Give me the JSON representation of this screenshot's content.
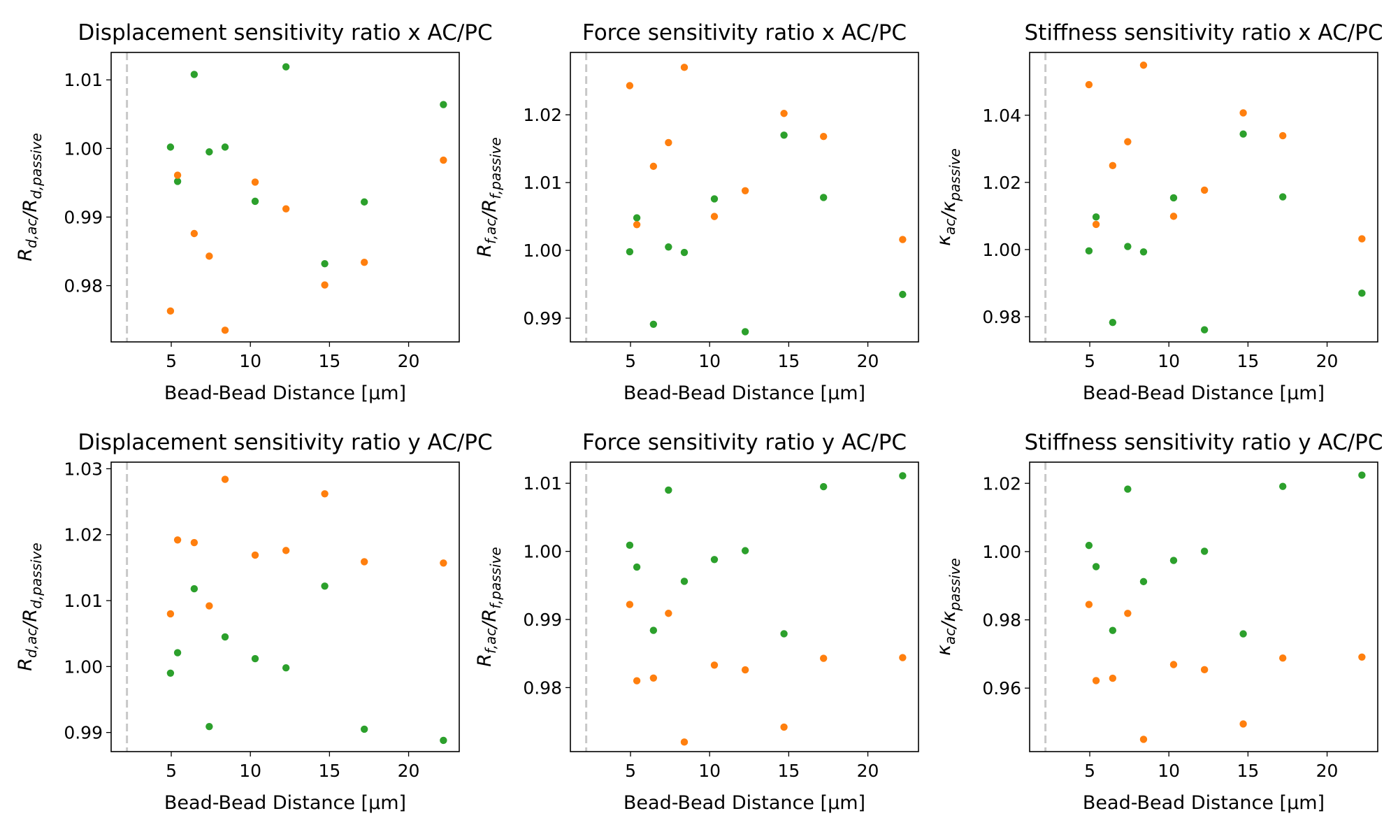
{
  "colors": {
    "active": "#2ca02c",
    "passive": "#ff7f0e",
    "reference_line": "#c8c8c8"
  },
  "reference_x": 2.2,
  "chart_data": [
    {
      "type": "scatter",
      "title": "Displacement sensitivity ratio x AC/PC",
      "xlabel": "Bead-Bead Distance [μm]",
      "ylabel": "R_d,ac/R_d,passive",
      "xlim": [
        1.2,
        23.2
      ],
      "ylim": [
        0.9718,
        1.014
      ],
      "xticks": [
        5,
        10,
        15,
        20
      ],
      "yticks": [
        0.98,
        0.99,
        1.0,
        1.01
      ],
      "ytick_labels": [
        "0.98",
        "0.99",
        "1.00",
        "1.01"
      ],
      "series": [
        {
          "color": "#2ca02c",
          "points": [
            [
              4.95,
              1.0002
            ],
            [
              5.4,
              0.9952
            ],
            [
              6.45,
              1.0108
            ],
            [
              7.4,
              0.9995
            ],
            [
              8.4,
              1.0002
            ],
            [
              10.3,
              0.9923
            ],
            [
              12.25,
              1.0119
            ],
            [
              14.7,
              0.9832
            ],
            [
              17.2,
              0.9922
            ],
            [
              22.2,
              1.0064
            ]
          ]
        },
        {
          "color": "#ff7f0e",
          "points": [
            [
              4.95,
              0.9763
            ],
            [
              5.4,
              0.9961
            ],
            [
              6.45,
              0.9876
            ],
            [
              7.4,
              0.9843
            ],
            [
              8.4,
              0.9735
            ],
            [
              10.3,
              0.9951
            ],
            [
              12.25,
              0.9912
            ],
            [
              14.7,
              0.9801
            ],
            [
              17.2,
              0.9834
            ],
            [
              22.2,
              0.9983
            ]
          ]
        }
      ]
    },
    {
      "type": "scatter",
      "title": "Force sensitivity ratio x AC/PC",
      "xlabel": "Bead-Bead Distance [μm]",
      "ylabel": "R_f,ac/R_f,passive",
      "xlim": [
        1.2,
        23.2
      ],
      "ylim": [
        0.9865,
        1.0292
      ],
      "xticks": [
        5,
        10,
        15,
        20
      ],
      "yticks": [
        0.99,
        1.0,
        1.01,
        1.02
      ],
      "ytick_labels": [
        "0.99",
        "1.00",
        "1.01",
        "1.02"
      ],
      "series": [
        {
          "color": "#2ca02c",
          "points": [
            [
              4.95,
              0.9998
            ],
            [
              5.4,
              1.0048
            ],
            [
              6.45,
              0.9891
            ],
            [
              7.4,
              1.0005
            ],
            [
              8.4,
              0.9997
            ],
            [
              10.3,
              1.0076
            ],
            [
              12.25,
              0.988
            ],
            [
              14.7,
              1.017
            ],
            [
              17.2,
              1.0078
            ],
            [
              22.2,
              0.9935
            ]
          ]
        },
        {
          "color": "#ff7f0e",
          "points": [
            [
              4.95,
              1.0243
            ],
            [
              5.4,
              1.0038
            ],
            [
              6.45,
              1.0124
            ],
            [
              7.4,
              1.0159
            ],
            [
              8.4,
              1.027
            ],
            [
              10.3,
              1.005
            ],
            [
              12.25,
              1.0088
            ],
            [
              14.7,
              1.0202
            ],
            [
              17.2,
              1.0168
            ],
            [
              22.2,
              1.0016
            ]
          ]
        }
      ]
    },
    {
      "type": "scatter",
      "title": "Stiffness sensitivity ratio x AC/PC",
      "xlabel": "Bead-Bead Distance [μm]",
      "ylabel": "κ_ac/κ_passive",
      "xlim": [
        1.2,
        23.2
      ],
      "ylim": [
        0.9725,
        1.0587
      ],
      "xticks": [
        5,
        10,
        15,
        20
      ],
      "yticks": [
        0.98,
        1.0,
        1.02,
        1.04
      ],
      "ytick_labels": [
        "0.98",
        "1.00",
        "1.02",
        "1.04"
      ],
      "series": [
        {
          "color": "#2ca02c",
          "points": [
            [
              4.95,
              0.9996
            ],
            [
              5.4,
              1.0097
            ],
            [
              6.45,
              0.9783
            ],
            [
              7.4,
              1.0009
            ],
            [
              8.4,
              0.9993
            ],
            [
              10.3,
              1.0154
            ],
            [
              12.25,
              0.9761
            ],
            [
              14.7,
              1.0344
            ],
            [
              17.2,
              1.0157
            ],
            [
              22.2,
              0.987
            ]
          ]
        },
        {
          "color": "#ff7f0e",
          "points": [
            [
              4.95,
              1.0491
            ],
            [
              5.4,
              1.0075
            ],
            [
              6.45,
              1.025
            ],
            [
              7.4,
              1.0321
            ],
            [
              8.4,
              1.0549
            ],
            [
              10.3,
              1.0099
            ],
            [
              12.25,
              1.0177
            ],
            [
              14.7,
              1.0407
            ],
            [
              17.2,
              1.0339
            ],
            [
              22.2,
              1.0032
            ]
          ]
        }
      ]
    },
    {
      "type": "scatter",
      "title": "Displacement sensitivity ratio y AC/PC",
      "xlabel": "Bead-Bead Distance [μm]",
      "ylabel": "R_d,ac/R_d,passive",
      "xlim": [
        1.2,
        23.2
      ],
      "ylim": [
        0.9871,
        1.031
      ],
      "xticks": [
        5,
        10,
        15,
        20
      ],
      "yticks": [
        0.99,
        1.0,
        1.01,
        1.02,
        1.03
      ],
      "ytick_labels": [
        "0.99",
        "1.00",
        "1.01",
        "1.02",
        "1.03"
      ],
      "series": [
        {
          "color": "#2ca02c",
          "points": [
            [
              4.95,
              0.999
            ],
            [
              5.4,
              1.0021
            ],
            [
              6.45,
              1.0118
            ],
            [
              7.4,
              0.9909
            ],
            [
              8.4,
              1.0045
            ],
            [
              10.3,
              1.0012
            ],
            [
              12.25,
              0.9998
            ],
            [
              14.7,
              1.0122
            ],
            [
              17.2,
              0.9905
            ],
            [
              22.2,
              0.9888
            ]
          ]
        },
        {
          "color": "#ff7f0e",
          "points": [
            [
              4.95,
              1.008
            ],
            [
              5.4,
              1.0192
            ],
            [
              6.45,
              1.0188
            ],
            [
              7.4,
              1.0092
            ],
            [
              8.4,
              1.0284
            ],
            [
              10.3,
              1.0169
            ],
            [
              12.25,
              1.0176
            ],
            [
              14.7,
              1.0262
            ],
            [
              17.2,
              1.0159
            ],
            [
              22.2,
              1.0157
            ]
          ]
        }
      ]
    },
    {
      "type": "scatter",
      "title": "Force sensitivity ratio y AC/PC",
      "xlabel": "Bead-Bead Distance [μm]",
      "ylabel": "R_f,ac/R_f,passive",
      "xlim": [
        1.2,
        23.2
      ],
      "ylim": [
        0.9706,
        1.0131
      ],
      "xticks": [
        5,
        10,
        15,
        20
      ],
      "yticks": [
        0.98,
        0.99,
        1.0,
        1.01
      ],
      "ytick_labels": [
        "0.98",
        "0.99",
        "1.00",
        "1.01"
      ],
      "series": [
        {
          "color": "#2ca02c",
          "points": [
            [
              4.95,
              1.0009
            ],
            [
              5.4,
              0.9977
            ],
            [
              6.45,
              0.9884
            ],
            [
              7.4,
              1.009
            ],
            [
              8.4,
              0.9956
            ],
            [
              10.3,
              0.9988
            ],
            [
              12.25,
              1.0001
            ],
            [
              14.7,
              0.9879
            ],
            [
              17.2,
              1.0095
            ],
            [
              22.2,
              1.0111
            ]
          ]
        },
        {
          "color": "#ff7f0e",
          "points": [
            [
              4.95,
              0.9922
            ],
            [
              5.4,
              0.981
            ],
            [
              6.45,
              0.9814
            ],
            [
              7.4,
              0.9909
            ],
            [
              8.4,
              0.972
            ],
            [
              10.3,
              0.9833
            ],
            [
              12.25,
              0.9826
            ],
            [
              14.7,
              0.9742
            ],
            [
              17.2,
              0.9843
            ],
            [
              22.2,
              0.9844
            ]
          ]
        }
      ]
    },
    {
      "type": "scatter",
      "title": "Stiffness sensitivity ratio y AC/PC",
      "xlabel": "Bead-Bead Distance [μm]",
      "ylabel": "κ_ac/κ_passive",
      "xlim": [
        1.2,
        23.2
      ],
      "ylim": [
        0.9414,
        1.0262
      ],
      "xticks": [
        5,
        10,
        15,
        20
      ],
      "yticks": [
        0.96,
        0.98,
        1.0,
        1.02
      ],
      "ytick_labels": [
        "0.96",
        "0.98",
        "1.00",
        "1.02"
      ],
      "series": [
        {
          "color": "#2ca02c",
          "points": [
            [
              4.95,
              1.0018
            ],
            [
              5.4,
              0.9956
            ],
            [
              6.45,
              0.9769
            ],
            [
              7.4,
              1.0183
            ],
            [
              8.4,
              0.9912
            ],
            [
              10.3,
              0.9974
            ],
            [
              12.25,
              1.0001
            ],
            [
              14.7,
              0.9759
            ],
            [
              17.2,
              1.0191
            ],
            [
              22.2,
              1.0224
            ]
          ]
        },
        {
          "color": "#ff7f0e",
          "points": [
            [
              4.95,
              0.9845
            ],
            [
              5.4,
              0.9622
            ],
            [
              6.45,
              0.9629
            ],
            [
              7.4,
              0.9819
            ],
            [
              8.4,
              0.945
            ],
            [
              10.3,
              0.9669
            ],
            [
              12.25,
              0.9654
            ],
            [
              14.7,
              0.9495
            ],
            [
              17.2,
              0.9688
            ],
            [
              22.2,
              0.9691
            ]
          ]
        }
      ]
    }
  ]
}
